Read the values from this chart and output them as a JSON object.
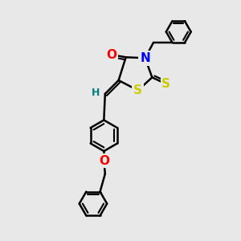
{
  "bg_color": "#e8e8e8",
  "bond_color": "#000000",
  "bond_width": 1.8,
  "atom_colors": {
    "O": "#ff0000",
    "N": "#0000ff",
    "S": "#cccc00",
    "H": "#008080",
    "C": "#000000"
  },
  "font_size": 10,
  "fig_size": [
    3.0,
    3.0
  ],
  "xlim": [
    0,
    10
  ],
  "ylim": [
    0,
    10
  ]
}
